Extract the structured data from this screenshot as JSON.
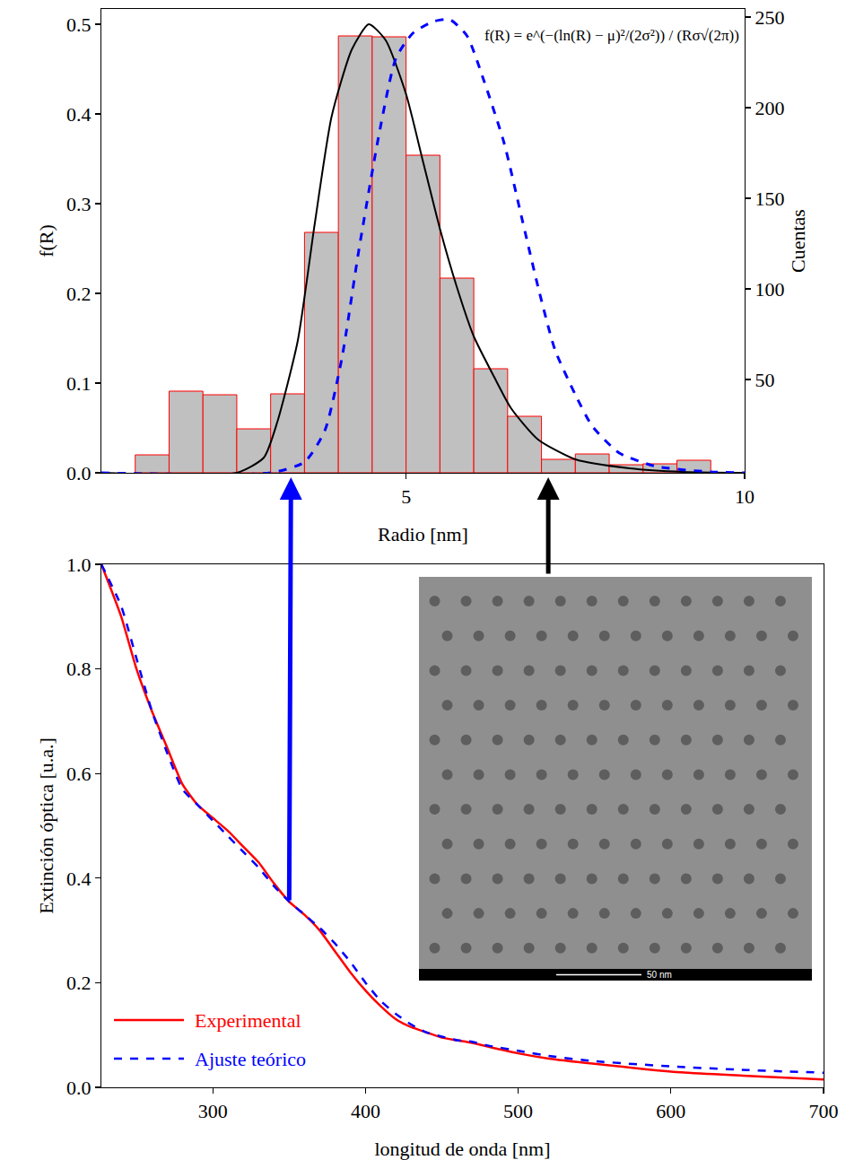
{
  "chart_data": [
    {
      "type": "histogram",
      "xlabel": "Radio [nm]",
      "ylabel": "f(R)",
      "y2label": "Cuentas",
      "bins": [
        1.0,
        1.5,
        2.0,
        2.5,
        3.0,
        3.5,
        4.0,
        4.5,
        5.0,
        5.5,
        6.0,
        6.5,
        7.0,
        7.5,
        8.0,
        8.5,
        9.0,
        9.5
      ],
      "values": [
        0.02,
        0.091,
        0.087,
        0.049,
        0.088,
        0.268,
        0.487,
        0.486,
        0.354,
        0.217,
        0.116,
        0.063,
        0.015,
        0.021,
        0.009,
        0.01,
        0.014
      ],
      "color": "#c0c0c0",
      "series": [
        {
          "type": "line",
          "color": "#000000",
          "line_style": "solid",
          "x": [
            0.5,
            2.5,
            2.9,
            3.1,
            3.4,
            3.65,
            3.9,
            4.2,
            4.45,
            4.7,
            5.0,
            5.25,
            5.5,
            5.75,
            6.0,
            6.3,
            6.55,
            6.95,
            7.5,
            8.3,
            9.1,
            10
          ],
          "values": [
            0,
            0.0,
            0.017,
            0.057,
            0.147,
            0.277,
            0.397,
            0.472,
            0.5,
            0.482,
            0.422,
            0.347,
            0.272,
            0.207,
            0.152,
            0.107,
            0.072,
            0.037,
            0.015,
            0.005,
            0.001,
            0
          ]
        },
        {
          "type": "line",
          "color": "#0000ff",
          "line_style": "dashed",
          "x": [
            0.5,
            3.0,
            3.5,
            3.8,
            4.05,
            4.3,
            4.6,
            4.85,
            5.1,
            5.4,
            5.65,
            5.9,
            6.15,
            6.45,
            6.7,
            6.95,
            7.2,
            7.5,
            7.75,
            8.15,
            8.7,
            9.5,
            10
          ],
          "values": [
            0,
            0,
            0.012,
            0.047,
            0.127,
            0.247,
            0.377,
            0.462,
            0.49,
            0.503,
            0.505,
            0.487,
            0.437,
            0.367,
            0.287,
            0.207,
            0.137,
            0.087,
            0.052,
            0.022,
            0.007,
            0.001,
            0
          ]
        }
      ],
      "xlim": [
        0.5,
        10
      ],
      "xticks": [
        5,
        10
      ],
      "ylim": [
        0,
        0.517
      ],
      "yticks": [
        {
          "value": 0,
          "label": "0.0"
        },
        {
          "value": 0.1,
          "label": "0.1"
        },
        {
          "value": 0.2,
          "label": "0.2"
        },
        {
          "value": 0.3,
          "label": "0.3"
        },
        {
          "value": 0.4,
          "label": "0.4"
        },
        {
          "value": 0.5,
          "label": "0.5"
        }
      ],
      "y2lim": [
        -1.5,
        254.5
      ],
      "y2ticks": [
        50,
        100,
        150,
        200,
        250
      ],
      "annotations": [
        {
          "text": "f(R) = e^(−(ln(R) − μ)²/(2σ²)) / (Rσ√(2π))"
        }
      ],
      "arrows": [
        {
          "x": 3.3,
          "color": "#0000ff"
        },
        {
          "x": 7.1,
          "color": "#000000"
        }
      ],
      "grid": false
    },
    {
      "type": "line",
      "xlabel": "longitud de onda [nm]",
      "ylabel": "Extinción óptica [u.a.]",
      "x": [
        227,
        240,
        250,
        260,
        270,
        280,
        290,
        300,
        310,
        320,
        330,
        340,
        350,
        360,
        370,
        380,
        390,
        400,
        410,
        420,
        430,
        440,
        450,
        460,
        470,
        480,
        500,
        520,
        550,
        600,
        650,
        700
      ],
      "series": [
        {
          "name": "Experimental",
          "color": "#ff0000",
          "line_style": "solid",
          "values": [
            1.0,
            0.9,
            0.8,
            0.72,
            0.65,
            0.58,
            0.54,
            0.515,
            0.49,
            0.46,
            0.43,
            0.39,
            0.355,
            0.33,
            0.3,
            0.26,
            0.22,
            0.185,
            0.155,
            0.13,
            0.115,
            0.105,
            0.095,
            0.09,
            0.085,
            0.078,
            0.065,
            0.055,
            0.045,
            0.03,
            0.022,
            0.015
          ]
        },
        {
          "name": "Ajuste teórico",
          "color": "#0000ff",
          "line_style": "dashed",
          "values": [
            1.0,
            0.92,
            0.82,
            0.72,
            0.64,
            0.57,
            0.54,
            0.51,
            0.48,
            0.45,
            0.42,
            0.385,
            0.355,
            0.33,
            0.305,
            0.275,
            0.24,
            0.2,
            0.165,
            0.14,
            0.12,
            0.105,
            0.097,
            0.09,
            0.087,
            0.08,
            0.07,
            0.06,
            0.05,
            0.04,
            0.033,
            0.028
          ]
        }
      ],
      "xlim": [
        227,
        700
      ],
      "xticks": [
        300,
        400,
        500,
        600,
        700
      ],
      "ylim": [
        0,
        1
      ],
      "yticks": [
        {
          "value": 0,
          "label": "0.0"
        },
        {
          "value": 0.2,
          "label": "0.2"
        },
        {
          "value": 0.4,
          "label": "0.4"
        },
        {
          "value": 0.6,
          "label": "0.6"
        },
        {
          "value": 0.8,
          "label": "0.8"
        },
        {
          "value": 1,
          "label": "1.0"
        }
      ],
      "legend": "lower left",
      "annotations": [
        {
          "text": "50 nm"
        }
      ],
      "arrows": [
        {
          "x": 350,
          "y": 0.355,
          "color": "#0000ff"
        }
      ],
      "grid": false
    }
  ]
}
